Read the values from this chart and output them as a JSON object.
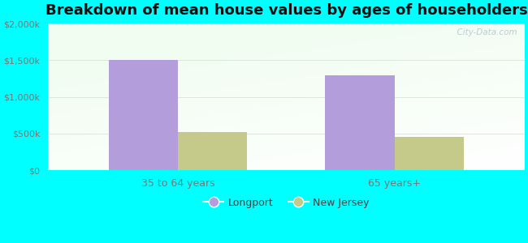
{
  "title": "Breakdown of mean house values by ages of householders",
  "categories": [
    "35 to 64 years",
    "65 years+"
  ],
  "series": [
    {
      "name": "Longport",
      "values": [
        1500000,
        1300000
      ],
      "color": "#b39ddb"
    },
    {
      "name": "New Jersey",
      "values": [
        520000,
        460000
      ],
      "color": "#c5c98a"
    }
  ],
  "ylim": [
    0,
    2000000
  ],
  "yticks": [
    0,
    500000,
    1000000,
    1500000,
    2000000
  ],
  "ytick_labels": [
    "$0",
    "$500k",
    "$1,000k",
    "$1,500k",
    "$2,000k"
  ],
  "background_color": "#00ffff",
  "plot_bg_topleft": "#d6ecd2",
  "plot_bg_topright": "#eaf3f8",
  "plot_bg_bottom": "#f5fbf5",
  "grid_color": "#dde8dd",
  "title_fontsize": 13,
  "bar_width": 0.32,
  "watermark": "  City-Data.com",
  "longport_color": "#b39ddb",
  "nj_color": "#c5c98a",
  "tick_color": "#777777",
  "title_color": "#111111"
}
